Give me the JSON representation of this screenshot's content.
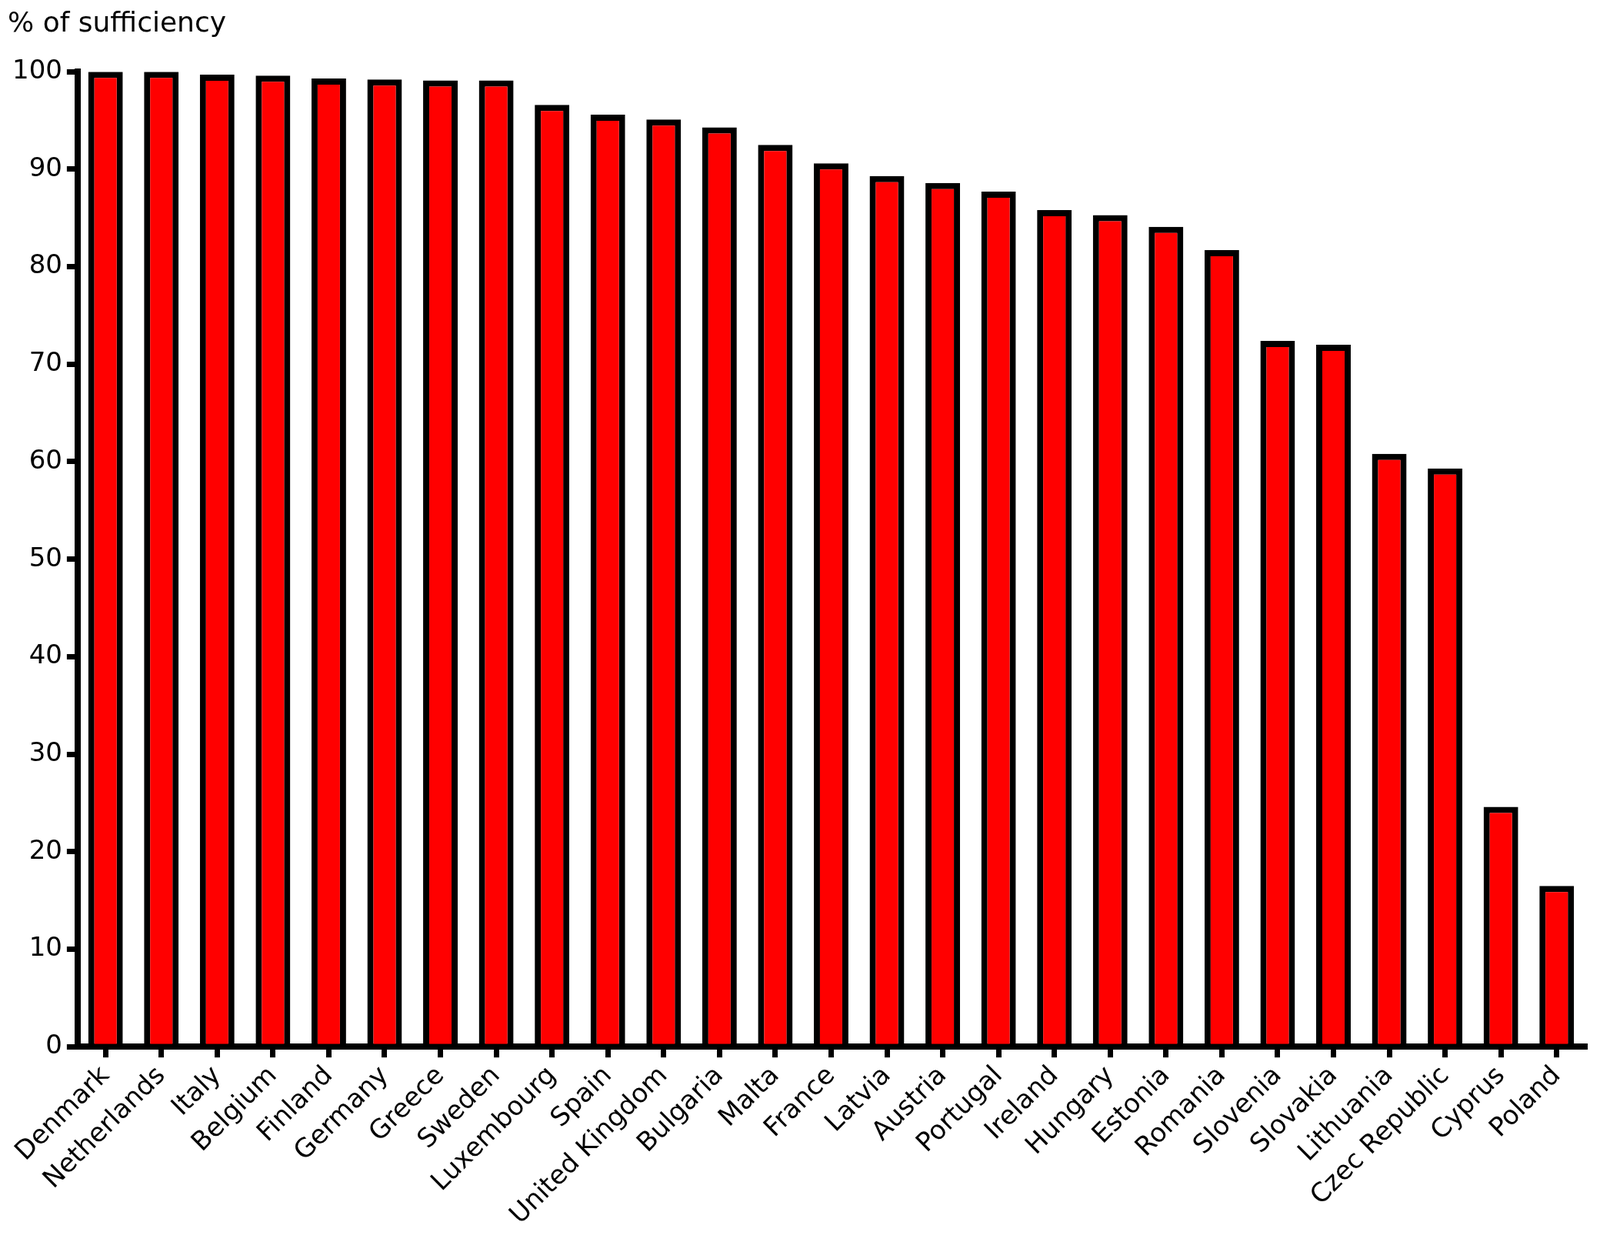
{
  "chart_data": {
    "type": "bar",
    "y_label": "% of sufficiency",
    "categories": [
      "Denmark",
      "Netherlands",
      "Italy",
      "Belgium",
      "Finland",
      "Germany",
      "Greece",
      "Sweden",
      "Luxembourg",
      "Spain",
      "United Kingdom",
      "Bulgaria",
      "Malta",
      "France",
      "Latvia",
      "Austria",
      "Portugal",
      "Ireland",
      "Hungary",
      "Estonia",
      "Romania",
      "Slovenia",
      "Slovakia",
      "Lithuania",
      "Czec Republic",
      "Cyprus",
      "Poland"
    ],
    "values": [
      100,
      100,
      99.7,
      99.6,
      99.3,
      99.2,
      99.1,
      99.1,
      96.6,
      95.6,
      95.1,
      94.3,
      92.5,
      90.6,
      89.3,
      88.6,
      87.7,
      85.8,
      85.3,
      84.1,
      81.7,
      72.4,
      72.0,
      60.8,
      59.3,
      24.6,
      16.5
    ],
    "color": "#ff0000",
    "ylim": [
      0,
      100
    ],
    "yticks": [
      0,
      10,
      20,
      30,
      40,
      50,
      60,
      70,
      80,
      90,
      100
    ],
    "grid": false
  }
}
